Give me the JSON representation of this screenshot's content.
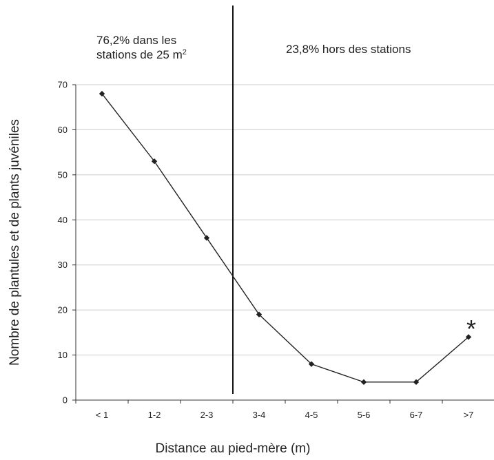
{
  "chart_data": {
    "type": "line",
    "categories": [
      "< 1",
      "1-2",
      "2-3",
      "3-4",
      "4-5",
      "5-6",
      "6-7",
      ">7"
    ],
    "values": [
      68,
      53,
      36,
      19,
      8,
      4,
      4,
      14
    ],
    "xlabel": "Distance au pied-mère (m)",
    "ylabel": "Nombre de plantules et de plants juvéniles",
    "ylim": [
      0,
      70
    ],
    "yticks": [
      0,
      10,
      20,
      30,
      40,
      50,
      60,
      70
    ],
    "grid": "horizontal",
    "annotations": {
      "left_line1": "76,2% dans les",
      "left_line2_text": "stations de 25 m",
      "left_line2_sup": "2",
      "right": "23,8% hors des stations",
      "marker": "*"
    },
    "divider_after_category": "2-3",
    "colors": {
      "line": "#222222",
      "grid": "#cfcfcf",
      "axis": "#333333"
    }
  }
}
